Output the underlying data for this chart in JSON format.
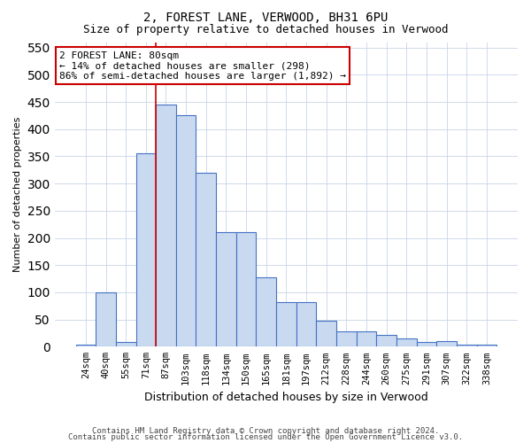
{
  "title": "2, FOREST LANE, VERWOOD, BH31 6PU",
  "subtitle": "Size of property relative to detached houses in Verwood",
  "xlabel": "Distribution of detached houses by size in Verwood",
  "ylabel": "Number of detached properties",
  "categories": [
    "24sqm",
    "40sqm",
    "55sqm",
    "71sqm",
    "87sqm",
    "103sqm",
    "118sqm",
    "134sqm",
    "150sqm",
    "165sqm",
    "181sqm",
    "197sqm",
    "212sqm",
    "228sqm",
    "244sqm",
    "260sqm",
    "275sqm",
    "291sqm",
    "307sqm",
    "322sqm",
    "338sqm"
  ],
  "bar_values": [
    3,
    100,
    8,
    355,
    445,
    425,
    320,
    210,
    210,
    128,
    82,
    82,
    48,
    28,
    28,
    22,
    15,
    8,
    10,
    3,
    3
  ],
  "bar_color": "#c9d9f0",
  "bar_edge_color": "#4472c4",
  "grid_color": "#c8d4e8",
  "background_color": "#ffffff",
  "annotation_text": "2 FOREST LANE: 80sqm\n← 14% of detached houses are smaller (298)\n86% of semi-detached houses are larger (1,892) →",
  "annotation_box_color": "#ffffff",
  "annotation_box_edge_color": "#cc0000",
  "marker_line_color": "#cc0000",
  "marker_line_bar_index": 3,
  "ylim": [
    0,
    560
  ],
  "yticks": [
    0,
    50,
    100,
    150,
    200,
    250,
    300,
    350,
    400,
    450,
    500,
    550
  ],
  "footer_line1": "Contains HM Land Registry data © Crown copyright and database right 2024.",
  "footer_line2": "Contains public sector information licensed under the Open Government Licence v3.0."
}
